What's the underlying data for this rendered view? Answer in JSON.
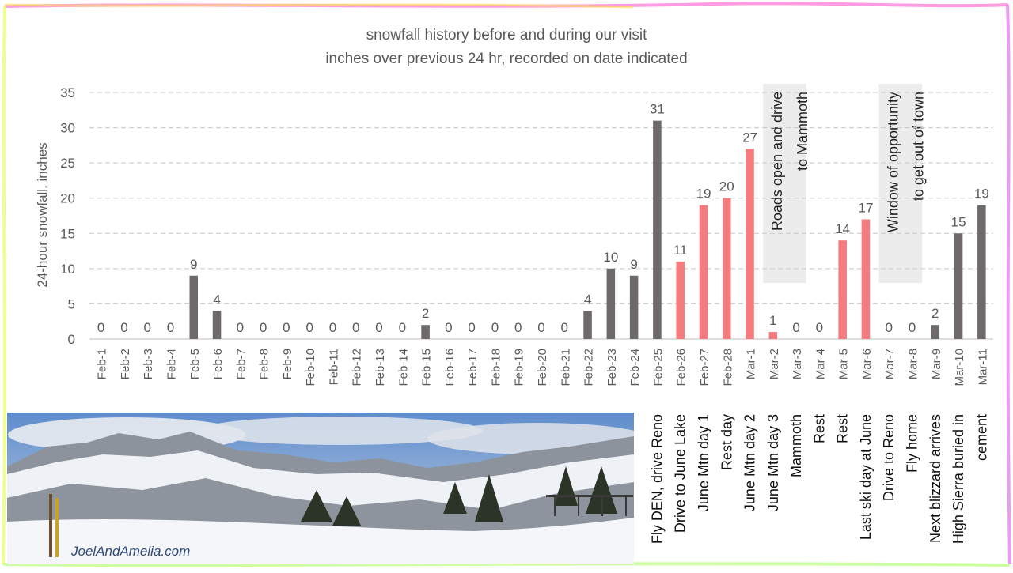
{
  "chart_data": {
    "type": "bar",
    "title": "snowfall history before and during our visit",
    "subtitle": "inches over previous 24 hr, recorded on date indicated",
    "ylabel": "24-hour snowfall, inches",
    "ylim": [
      0,
      35
    ],
    "yticks": [
      "0",
      "5",
      "10",
      "15",
      "20",
      "25",
      "30",
      "35"
    ],
    "grid": true,
    "categories": [
      "Feb-1",
      "Feb-2",
      "Feb-3",
      "Feb-4",
      "Feb-5",
      "Feb-6",
      "Feb-7",
      "Feb-8",
      "Feb-9",
      "Feb-10",
      "Feb-11",
      "Feb-12",
      "Feb-13",
      "Feb-14",
      "Feb-15",
      "Feb-16",
      "Feb-17",
      "Feb-18",
      "Feb-19",
      "Feb-20",
      "Feb-21",
      "Feb-22",
      "Feb-23",
      "Feb-24",
      "Feb-25",
      "Feb-26",
      "Feb-27",
      "Feb-28",
      "Mar-1",
      "Mar-2",
      "Mar-3",
      "Mar-4",
      "Mar-5",
      "Mar-6",
      "Mar-7",
      "Mar-8",
      "Mar-9",
      "Mar-10",
      "Mar-11"
    ],
    "values": [
      0,
      0,
      0,
      0,
      9,
      4,
      0,
      0,
      0,
      0,
      0,
      0,
      0,
      0,
      2,
      0,
      0,
      0,
      0,
      0,
      0,
      4,
      10,
      9,
      31,
      11,
      19,
      20,
      27,
      1,
      0,
      0,
      14,
      17,
      0,
      0,
      2,
      15,
      19
    ],
    "data_labels": [
      "0",
      "0",
      "0",
      "0",
      "9",
      "4",
      "0",
      "0",
      "0",
      "0",
      "0",
      "0",
      "0",
      "0",
      "2",
      "0",
      "0",
      "0",
      "0",
      "0",
      "0",
      "4",
      "10",
      "9",
      "31",
      "11",
      "19",
      "20",
      "27",
      "1",
      "0",
      "0",
      "14",
      "17",
      "0",
      "0",
      "2",
      "15",
      "19"
    ],
    "highlighted": [
      false,
      false,
      false,
      false,
      false,
      false,
      false,
      false,
      false,
      false,
      false,
      false,
      false,
      false,
      false,
      false,
      false,
      false,
      false,
      false,
      false,
      false,
      false,
      false,
      false,
      true,
      true,
      true,
      true,
      true,
      false,
      false,
      true,
      true,
      false,
      false,
      false,
      false,
      false
    ],
    "colors": {
      "default": "#6e6a6a",
      "highlight": "#f47c7e",
      "grid": "#c8c8c8",
      "text": "#595959",
      "annotation_bg": "#ececec"
    },
    "itinerary": [
      {
        "category": "Feb-25",
        "label": "Fly DEN, drive Reno"
      },
      {
        "category": "Feb-26",
        "label": "Drive to June Lake"
      },
      {
        "category": "Feb-27",
        "label": "June Mtn day 1"
      },
      {
        "category": "Feb-28",
        "label": "Rest day"
      },
      {
        "category": "Mar-1",
        "label": "June Mtn day 2"
      },
      {
        "category": "Mar-2",
        "label": "June Mtn day 3"
      },
      {
        "category": "Mar-3",
        "label": "Mammoth"
      },
      {
        "category": "Mar-4",
        "label": "Rest"
      },
      {
        "category": "Mar-5",
        "label": "Rest"
      },
      {
        "category": "Mar-6",
        "label": "Last ski day at June"
      },
      {
        "category": "Mar-7",
        "label": "Drive to Reno"
      },
      {
        "category": "Mar-8",
        "label": "Fly home"
      },
      {
        "category": "Mar-9",
        "label": "Next blizzard arrives"
      },
      {
        "category": "Mar-10",
        "label": "High Sierra buried in"
      },
      {
        "category": "Mar-11",
        "label": "cement"
      }
    ],
    "annotations": [
      {
        "lines": [
          "Roads open and drive",
          "to Mammoth"
        ],
        "at": [
          "Mar-2",
          "Mar-3"
        ]
      },
      {
        "lines": [
          "Window of opportunity",
          "to get out of town"
        ],
        "at": [
          "Mar-7",
          "Mar-8"
        ]
      }
    ]
  },
  "photo": {
    "watermark": "JoelAndAmelia.com",
    "colors": {
      "sky": "#7fa7d6",
      "cloud": "#e4e8ee",
      "mountain": "#5d6470",
      "snow": "#f3f5f8",
      "trees": "#2c3327"
    }
  }
}
